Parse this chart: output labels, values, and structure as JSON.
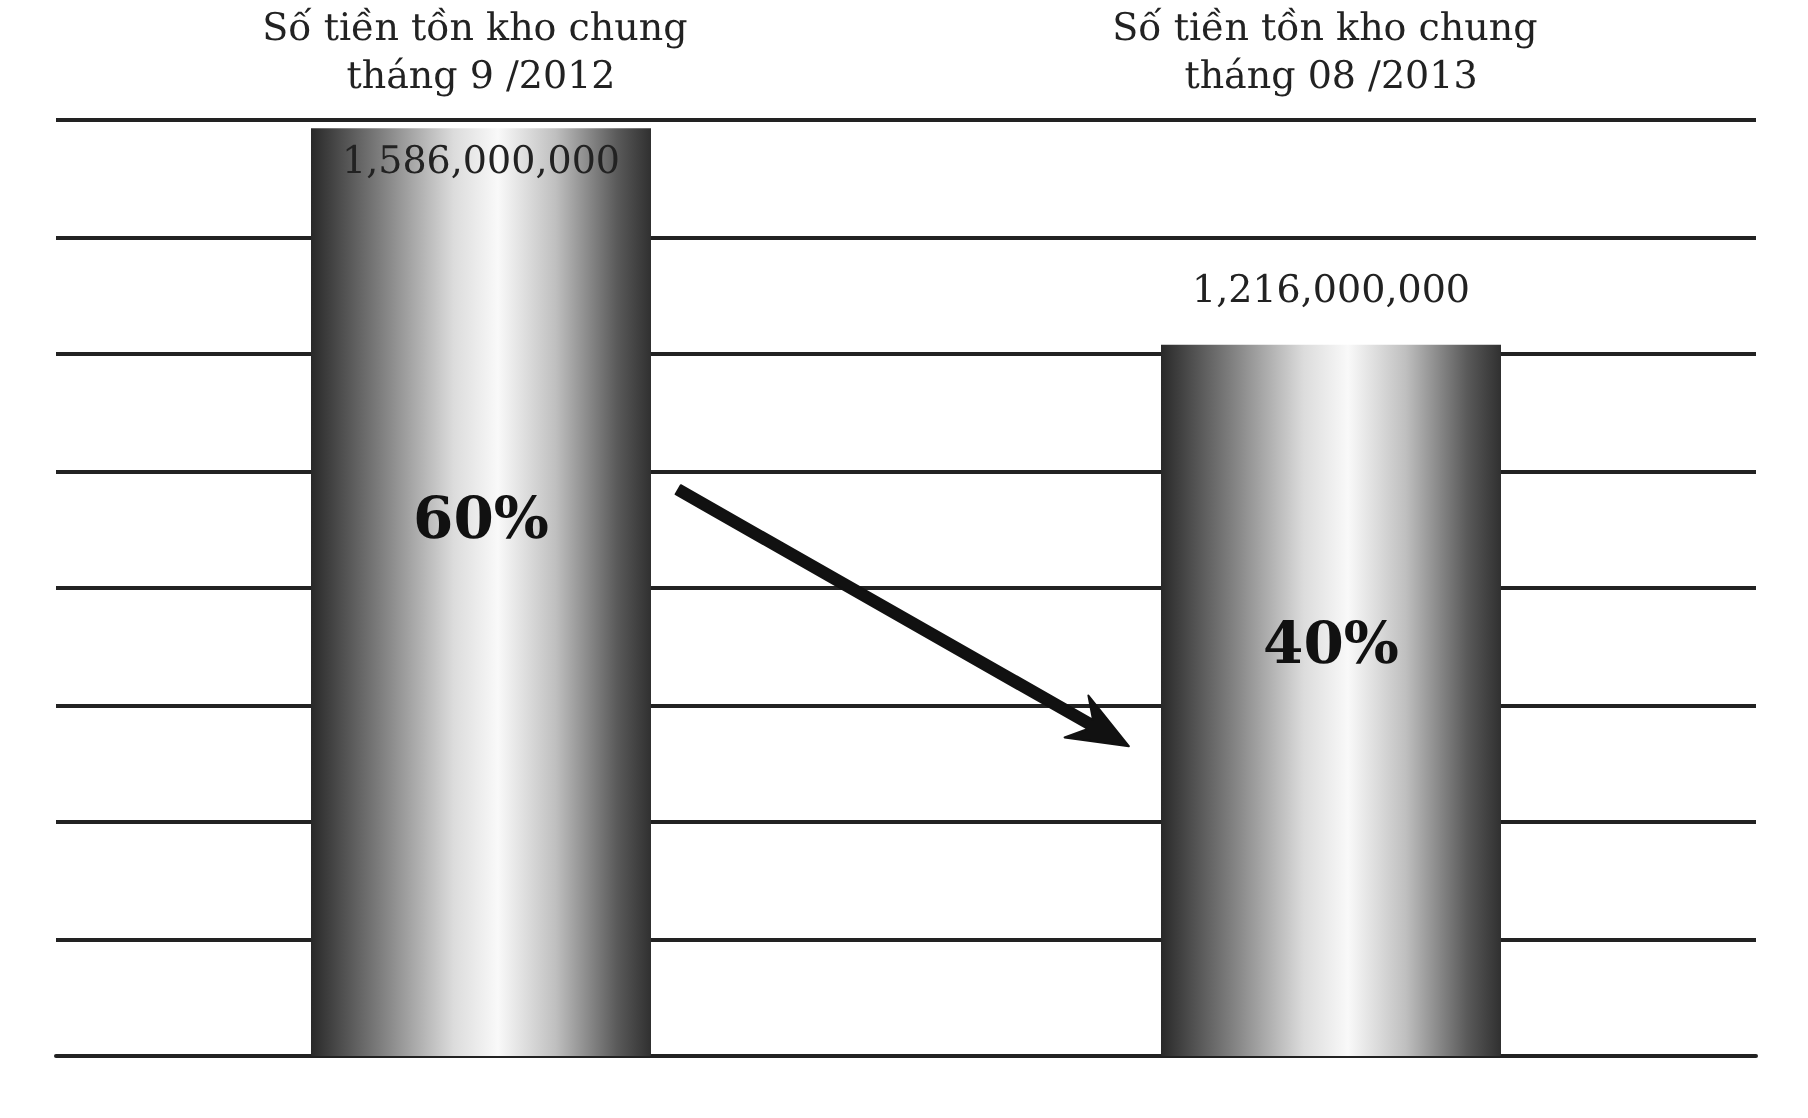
{
  "chart_data": {
    "type": "bar",
    "categories": [
      "Số tiền tồn kho chung tháng 9 /2012",
      "Số tiền tồn kho chung tháng 08 /2013"
    ],
    "values": [
      1586000000,
      1216000000
    ],
    "value_labels": [
      "1,586,000,000",
      "1,216,000,000"
    ],
    "color": "#8a8a8a",
    "tick_labels": "x",
    "grid": "y",
    "annotations": [
      "60%",
      "40%"
    ]
  }
}
